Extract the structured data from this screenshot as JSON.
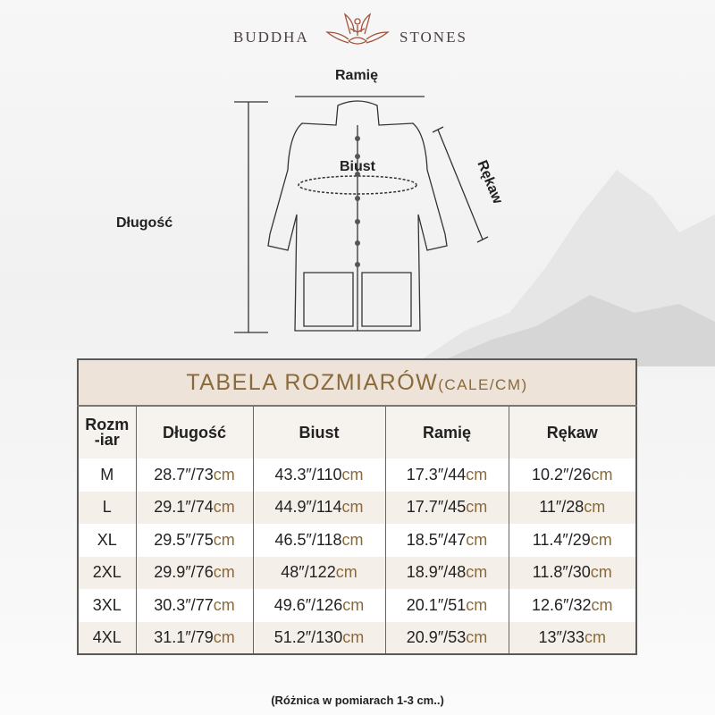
{
  "brand": {
    "left": "BUDDHA",
    "right": "STONES"
  },
  "diagram": {
    "shoulder": "Ramię",
    "chest": "Biust",
    "sleeve": "Rękaw",
    "length": "Długość"
  },
  "table": {
    "title": "TABELA ROZMIARÓW",
    "title_unit": "(CALE/CM)",
    "headers": [
      "Rozm\n-iar",
      "Długość",
      "Biust",
      "Ramię",
      "Rękaw"
    ],
    "unit": "cm",
    "rows": [
      {
        "size": "M",
        "values": [
          "28.7″/73",
          "43.3″/110",
          "17.3″/44",
          "10.2″/26"
        ]
      },
      {
        "size": "L",
        "values": [
          "29.1″/74",
          "44.9″/114",
          "17.7″/45",
          "11″/28"
        ]
      },
      {
        "size": "XL",
        "values": [
          "29.5″/75",
          "46.5″/118",
          "18.5″/47",
          "11.4″/29"
        ]
      },
      {
        "size": "2XL",
        "values": [
          "29.9″/76",
          "48″/122",
          "18.9″/48",
          "11.8″/30"
        ]
      },
      {
        "size": "3XL",
        "values": [
          "30.3″/77",
          "49.6″/126",
          "20.1″/51",
          "12.6″/32"
        ]
      },
      {
        "size": "4XL",
        "values": [
          "31.1″/79",
          "51.2″/130",
          "20.9″/53",
          "13″/33"
        ]
      }
    ]
  },
  "note": "(Różnica w pomiarach 1-3 cm..)",
  "colors": {
    "accent": "#8a6a3b",
    "title_bg": "#ede3d9",
    "alt_row": "#f5efe9",
    "logo": "#a0523a"
  }
}
